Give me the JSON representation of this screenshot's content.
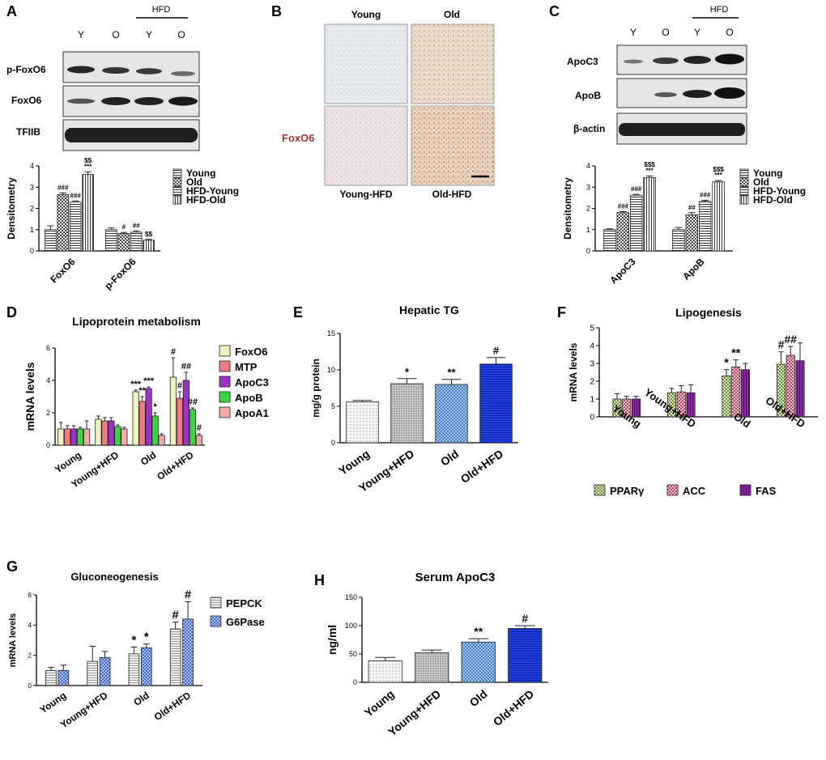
{
  "colors": {
    "young_fill": "#f2f2f2",
    "hfd_fill": "#cfcfcf",
    "blot_band": "#262626",
    "accent_red": "#a3352d",
    "liver_young": "#e6e8ef",
    "liver_old": "#ead8c8"
  },
  "panelA": {
    "letter": "A",
    "hfd_label": "HFD",
    "lane_labels": [
      "Y",
      "O",
      "Y",
      "O"
    ],
    "blot_labels": [
      "p-FoxO6",
      "FoxO6",
      "TFIIB"
    ],
    "chart_data": {
      "type": "bar",
      "ylabel": "Densitometry",
      "ylim": [
        0,
        4
      ],
      "yticks": [
        "0",
        "1",
        "2",
        "3",
        "4"
      ],
      "categories": [
        "FoxO6",
        "p-FoxO6"
      ],
      "series": [
        {
          "name": "Young",
          "values": [
            1.0,
            1.0
          ],
          "errors": [
            0.18,
            0.08
          ]
        },
        {
          "name": "Old",
          "values": [
            2.65,
            0.82
          ],
          "errors": [
            0.08,
            0.05
          ]
        },
        {
          "name": "HFD-Young",
          "values": [
            2.3,
            0.88
          ],
          "errors": [
            0.05,
            0.06
          ]
        },
        {
          "name": "HFD-Old",
          "values": [
            3.6,
            0.5
          ],
          "errors": [
            0.12,
            0.04
          ]
        }
      ],
      "annotations": [
        [
          "",
          ""
        ],
        [
          "###",
          "#"
        ],
        [
          "###",
          "##"
        ],
        [
          "$$\n***",
          "$$"
        ]
      ],
      "legend": [
        "Young",
        "Old",
        "HFD-Young",
        "HFD-Old"
      ]
    }
  },
  "panelB": {
    "letter": "B",
    "col_labels": [
      "Young",
      "Old"
    ],
    "row_label": "FoxO6",
    "bottom_labels": [
      "Young-HFD",
      "Old-HFD"
    ]
  },
  "panelC": {
    "letter": "C",
    "hfd_label": "HFD",
    "lane_labels": [
      "Y",
      "O",
      "Y",
      "O"
    ],
    "blot_labels": [
      "ApoC3",
      "ApoB",
      "β-actin"
    ],
    "chart_data": {
      "type": "bar",
      "ylabel": "Densitometry",
      "ylim": [
        0,
        4
      ],
      "yticks": [
        "0",
        "1",
        "2",
        "3",
        "4"
      ],
      "categories": [
        "ApoC3",
        "ApoB"
      ],
      "series": [
        {
          "name": "Young",
          "values": [
            1.0,
            1.0
          ],
          "errors": [
            0.04,
            0.1
          ]
        },
        {
          "name": "Old",
          "values": [
            1.8,
            1.7
          ],
          "errors": [
            0.05,
            0.1
          ]
        },
        {
          "name": "HFD-Young",
          "values": [
            2.62,
            2.32
          ],
          "errors": [
            0.04,
            0.06
          ]
        },
        {
          "name": "HFD-Old",
          "values": [
            3.45,
            3.25
          ],
          "errors": [
            0.08,
            0.06
          ]
        }
      ],
      "annotations": [
        [
          "",
          ""
        ],
        [
          "###",
          "##"
        ],
        [
          "###",
          "###"
        ],
        [
          "$$$\n***",
          "$$$\n***"
        ]
      ],
      "legend": [
        "Young",
        "Old",
        "HFD-Young",
        "HFD-Old"
      ]
    }
  },
  "panelD": {
    "letter": "D",
    "chart_data": {
      "type": "bar",
      "title": "Lipoprotein metabolism",
      "ylabel": "mRNA levels",
      "ylim": [
        0,
        6
      ],
      "yticks": [
        "0",
        "2",
        "4",
        "6"
      ],
      "categories": [
        "Young",
        "Young+HFD",
        "Old",
        "Old+HFD"
      ],
      "series": [
        {
          "name": "FoxO6",
          "color": "#f2f2c0",
          "values": [
            1.0,
            1.6,
            3.3,
            4.2
          ],
          "errors": [
            0.4,
            0.2,
            0.1,
            1.2
          ]
        },
        {
          "name": "MTP",
          "color": "#f07b84",
          "values": [
            1.0,
            1.5,
            2.7,
            2.9
          ],
          "errors": [
            0.2,
            0.2,
            0.3,
            0.4
          ]
        },
        {
          "name": "ApoC3",
          "color": "#9b33c9",
          "values": [
            1.0,
            1.5,
            3.5,
            4.0
          ],
          "errors": [
            0.2,
            0.2,
            0.1,
            0.5
          ]
        },
        {
          "name": "ApoB",
          "color": "#39d63c",
          "values": [
            1.0,
            1.15,
            1.8,
            2.2
          ],
          "errors": [
            0.1,
            0.1,
            0.2,
            0.1
          ]
        },
        {
          "name": "ApoA1",
          "color": "#f5a9a5",
          "values": [
            1.0,
            1.0,
            0.6,
            0.6
          ],
          "errors": [
            0.5,
            0.1,
            0.1,
            0.1
          ]
        }
      ],
      "annotations": [
        [
          "",
          "",
          "***",
          "#"
        ],
        [
          "",
          "",
          "**",
          "#"
        ],
        [
          "",
          "",
          "***",
          "##"
        ],
        [
          "",
          "",
          "*",
          "##"
        ],
        [
          "",
          "",
          "",
          "#"
        ]
      ],
      "legend": [
        "FoxO6",
        "MTP",
        "ApoC3",
        "ApoB",
        "ApoA1"
      ]
    }
  },
  "panelE": {
    "letter": "E",
    "chart_data": {
      "type": "bar",
      "title": "Hepatic TG",
      "ylabel": "mg/g protein",
      "ylim": [
        0,
        15
      ],
      "yticks": [
        "0",
        "5",
        "10",
        "15"
      ],
      "categories": [
        "Young",
        "Young+HFD",
        "Old",
        "Old+HFD"
      ],
      "values": [
        5.6,
        8.1,
        8.0,
        10.8
      ],
      "errors": [
        0.2,
        0.7,
        0.7,
        0.9
      ],
      "colors": [
        "#f7f7f7",
        "#d8d8d8",
        "#5a9ad6",
        "#1a33d8"
      ],
      "annotations": [
        "",
        "*",
        "**",
        "#"
      ]
    }
  },
  "panelF": {
    "letter": "F",
    "chart_data": {
      "type": "bar",
      "title": "Lipogenesis",
      "ylabel": "mRNA levels",
      "ylim": [
        0,
        5
      ],
      "yticks": [
        "0",
        "1",
        "2",
        "3",
        "4",
        "5"
      ],
      "categories": [
        "Young",
        "Young+HFD",
        "Old",
        "Old+HFD"
      ],
      "series": [
        {
          "name": "PPARγ",
          "color": "#c2dd8a",
          "values": [
            1.0,
            1.35,
            2.3,
            2.95
          ],
          "errors": [
            0.3,
            0.25,
            0.35,
            0.7
          ]
        },
        {
          "name": "ACC",
          "color": "#e58aa3",
          "values": [
            1.0,
            1.4,
            2.8,
            3.45
          ],
          "errors": [
            0.15,
            0.35,
            0.4,
            0.5
          ]
        },
        {
          "name": "FAS",
          "color": "#7a2a9a",
          "values": [
            1.0,
            1.35,
            2.65,
            3.15
          ],
          "errors": [
            0.15,
            0.45,
            0.35,
            1.0
          ]
        }
      ],
      "annotations": [
        [
          "",
          "",
          "*",
          "#"
        ],
        [
          "",
          "",
          "**",
          "##"
        ],
        [
          "",
          "",
          "",
          ""
        ]
      ],
      "legend": [
        "PPARγ",
        "ACC",
        "FAS"
      ]
    }
  },
  "panelG": {
    "letter": "G",
    "chart_data": {
      "type": "bar",
      "title": "Gluconeogenesis",
      "ylabel": "mRNA levels",
      "ylim": [
        0,
        6
      ],
      "yticks": [
        "0",
        "2",
        "4",
        "6"
      ],
      "categories": [
        "Young",
        "Young+HFD",
        "Old",
        "Old+HFD"
      ],
      "series": [
        {
          "name": "PEPCK",
          "color": "#e8e8e8",
          "values": [
            1.0,
            1.6,
            2.1,
            3.75
          ],
          "errors": [
            0.2,
            1.0,
            0.45,
            0.45
          ]
        },
        {
          "name": "G6Pase",
          "color": "#6f8ff0",
          "values": [
            1.0,
            1.85,
            2.5,
            4.4
          ],
          "errors": [
            0.35,
            0.4,
            0.25,
            1.15
          ]
        }
      ],
      "annotations": [
        [
          "",
          "",
          "*",
          "#"
        ],
        [
          "",
          "",
          "*",
          "#"
        ]
      ],
      "legend": [
        "PEPCK",
        "G6Pase"
      ]
    }
  },
  "panelH": {
    "letter": "H",
    "chart_data": {
      "type": "bar",
      "title": "Serum ApoC3",
      "ylabel": "ng/ml",
      "ylim": [
        0,
        150
      ],
      "yticks": [
        "0",
        "50",
        "100",
        "150"
      ],
      "categories": [
        "Young",
        "Young+HFD",
        "Old",
        "Old+HFD"
      ],
      "values": [
        38,
        52,
        71,
        95
      ],
      "errors": [
        6,
        5,
        6,
        5
      ],
      "colors": [
        "#f7f7f7",
        "#d8d8d8",
        "#5a9ad6",
        "#1a33d8"
      ],
      "annotations": [
        "",
        "",
        "**",
        "#"
      ]
    }
  }
}
